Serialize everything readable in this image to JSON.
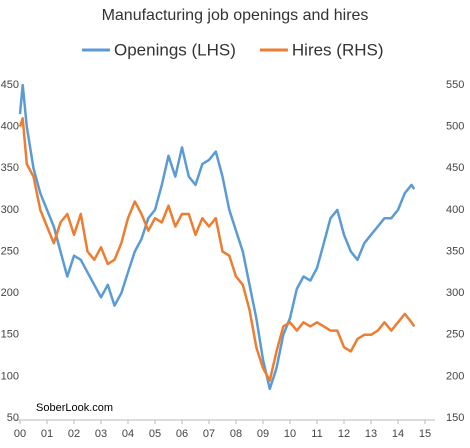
{
  "chart_data": {
    "type": "line",
    "title": "Manufacturing job openings and hires",
    "annotation": "SoberLook.com",
    "x": [
      0,
      0.1,
      0.25,
      0.5,
      0.75,
      1,
      1.25,
      1.5,
      1.75,
      2,
      2.25,
      2.5,
      2.75,
      3,
      3.25,
      3.5,
      3.75,
      4,
      4.25,
      4.5,
      4.75,
      5,
      5.25,
      5.5,
      5.75,
      6,
      6.25,
      6.5,
      6.75,
      7,
      7.25,
      7.5,
      7.75,
      8,
      8.25,
      8.5,
      8.75,
      9,
      9.25,
      9.5,
      9.75,
      10,
      10.25,
      10.5,
      10.75,
      11,
      11.25,
      11.5,
      11.75,
      12,
      12.25,
      12.5,
      12.75,
      13,
      13.25,
      13.5,
      13.75,
      14,
      14.25,
      14.5,
      14.6
    ],
    "series": [
      {
        "name": "Openings (LHS)",
        "color": "#5b9bd5",
        "axis": "y",
        "values": [
          415,
          450,
          400,
          350,
          320,
          300,
          280,
          250,
          220,
          245,
          240,
          225,
          210,
          195,
          210,
          185,
          200,
          225,
          250,
          265,
          290,
          300,
          330,
          365,
          340,
          375,
          340,
          330,
          355,
          360,
          370,
          340,
          300,
          275,
          250,
          210,
          170,
          120,
          85,
          110,
          150,
          170,
          205,
          220,
          215,
          230,
          260,
          290,
          300,
          270,
          250,
          240,
          260,
          270,
          280,
          290,
          290,
          300,
          320,
          330,
          325
        ]
      },
      {
        "name": "Hires (RHS)",
        "color": "#ed7d31",
        "axis": "y2",
        "values": [
          500,
          510,
          455,
          440,
          400,
          380,
          360,
          385,
          395,
          370,
          395,
          350,
          340,
          355,
          335,
          340,
          360,
          390,
          410,
          395,
          375,
          390,
          385,
          405,
          380,
          395,
          395,
          370,
          390,
          380,
          390,
          350,
          345,
          320,
          310,
          280,
          235,
          210,
          195,
          230,
          260,
          265,
          255,
          265,
          260,
          265,
          260,
          255,
          255,
          235,
          230,
          245,
          250,
          250,
          255,
          265,
          255,
          265,
          275,
          265,
          260
        ]
      }
    ],
    "xlim": [
      0,
      15
    ],
    "xticks": [
      {
        "value": 0,
        "label": "00"
      },
      {
        "value": 1,
        "label": "01"
      },
      {
        "value": 2,
        "label": "02"
      },
      {
        "value": 3,
        "label": "03"
      },
      {
        "value": 4,
        "label": "04"
      },
      {
        "value": 5,
        "label": "05"
      },
      {
        "value": 6,
        "label": "06"
      },
      {
        "value": 7,
        "label": "07"
      },
      {
        "value": 8,
        "label": "08"
      },
      {
        "value": 9,
        "label": "09"
      },
      10,
      11,
      12,
      13,
      14,
      15
    ],
    "ylim": [
      50,
      450
    ],
    "yticks": [
      50,
      100,
      150,
      200,
      250,
      300,
      350,
      400,
      450
    ],
    "y2lim": [
      150,
      550
    ],
    "y2ticks": [
      150,
      200,
      250,
      300,
      350,
      400,
      450,
      500,
      550
    ],
    "grid": false
  }
}
